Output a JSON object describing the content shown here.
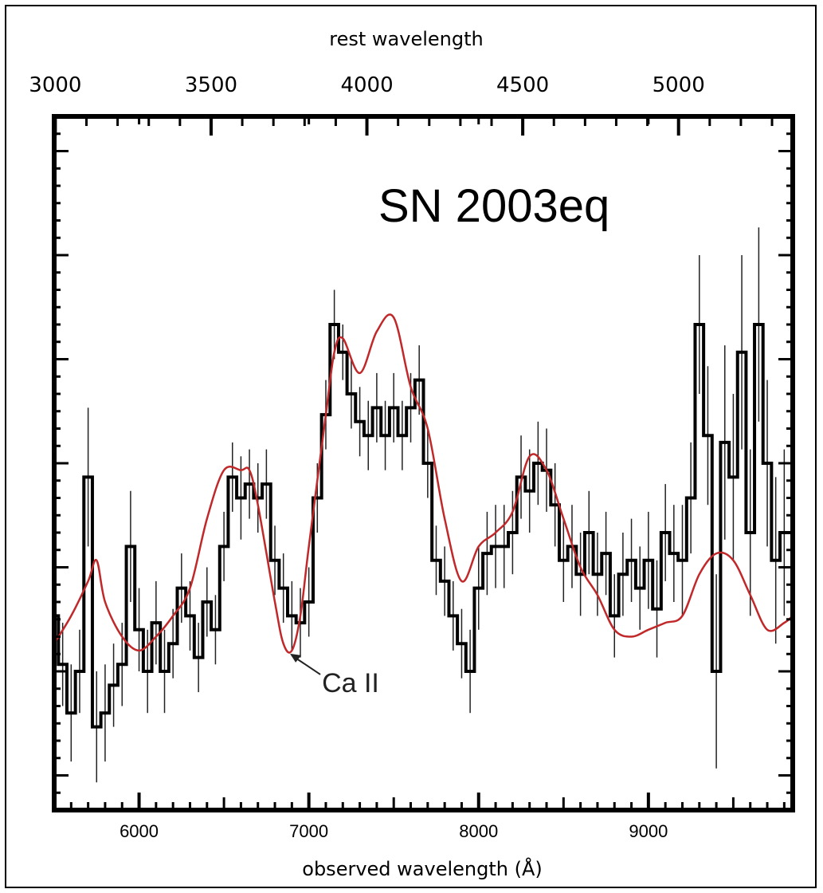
{
  "chart_data": {
    "type": "line",
    "title": "SN 2003eq",
    "xlabel": "observed wavelength (Å)",
    "x2label": "rest wavelength",
    "xlim": [
      5500,
      9850
    ],
    "ylim": [
      0,
      1
    ],
    "x_ticks": [
      6000,
      7000,
      8000,
      9000
    ],
    "x_ticks_labels": [
      "6000",
      "7000",
      "8000",
      "9000"
    ],
    "x2_ticks": [
      3000,
      3500,
      4000,
      4500,
      5000
    ],
    "x2_ticks_labels": [
      "3000",
      "3500",
      "4000",
      "4500",
      "5000"
    ],
    "annotation": {
      "text": "Ca II",
      "x": 6880,
      "y": 0.23
    },
    "colors": {
      "data": "#000000",
      "model": "#c0282a",
      "axes": "#000000"
    },
    "series": [
      {
        "style": "steps",
        "color": "#000000",
        "x": [
          5500,
          5550,
          5600,
          5650,
          5700,
          5750,
          5800,
          5850,
          5900,
          5950,
          6000,
          6050,
          6100,
          6150,
          6200,
          6250,
          6300,
          6350,
          6400,
          6450,
          6500,
          6550,
          6600,
          6650,
          6700,
          6750,
          6800,
          6850,
          6900,
          6950,
          7000,
          7050,
          7100,
          7150,
          7200,
          7250,
          7300,
          7350,
          7400,
          7450,
          7500,
          7550,
          7600,
          7650,
          7700,
          7750,
          7800,
          7850,
          7900,
          7950,
          8000,
          8050,
          8100,
          8150,
          8200,
          8250,
          8300,
          8350,
          8400,
          8450,
          8500,
          8550,
          8600,
          8650,
          8700,
          8750,
          8800,
          8850,
          8900,
          8950,
          9000,
          9050,
          9100,
          9150,
          9200,
          9250,
          9300,
          9350,
          9400,
          9450,
          9500,
          9550,
          9600,
          9650,
          9700,
          9750,
          9800,
          9850
        ],
        "values": [
          0.28,
          0.21,
          0.14,
          0.2,
          0.48,
          0.12,
          0.14,
          0.18,
          0.21,
          0.38,
          0.26,
          0.2,
          0.27,
          0.2,
          0.24,
          0.32,
          0.28,
          0.22,
          0.3,
          0.26,
          0.38,
          0.48,
          0.45,
          0.47,
          0.45,
          0.47,
          0.36,
          0.32,
          0.28,
          0.27,
          0.3,
          0.45,
          0.57,
          0.7,
          0.66,
          0.6,
          0.56,
          0.54,
          0.58,
          0.54,
          0.58,
          0.54,
          0.58,
          0.62,
          0.5,
          0.36,
          0.33,
          0.28,
          0.24,
          0.2,
          0.32,
          0.37,
          0.38,
          0.38,
          0.4,
          0.48,
          0.46,
          0.5,
          0.49,
          0.44,
          0.36,
          0.38,
          0.34,
          0.4,
          0.34,
          0.37,
          0.28,
          0.34,
          0.36,
          0.32,
          0.36,
          0.29,
          0.4,
          0.37,
          0.36,
          0.45,
          0.7,
          0.54,
          0.2,
          0.53,
          0.48,
          0.66,
          0.4,
          0.7,
          0.5,
          0.36,
          0.4,
          0.4
        ],
        "errors": [
          0.05,
          0.06,
          0.07,
          0.06,
          0.1,
          0.08,
          0.07,
          0.06,
          0.06,
          0.08,
          0.06,
          0.06,
          0.06,
          0.06,
          0.05,
          0.05,
          0.05,
          0.05,
          0.05,
          0.05,
          0.05,
          0.05,
          0.06,
          0.05,
          0.05,
          0.05,
          0.05,
          0.05,
          0.05,
          0.05,
          0.05,
          0.05,
          0.05,
          0.05,
          0.04,
          0.05,
          0.05,
          0.05,
          0.05,
          0.05,
          0.05,
          0.05,
          0.05,
          0.05,
          0.05,
          0.05,
          0.05,
          0.05,
          0.05,
          0.06,
          0.06,
          0.06,
          0.06,
          0.06,
          0.06,
          0.06,
          0.06,
          0.06,
          0.06,
          0.06,
          0.06,
          0.06,
          0.06,
          0.06,
          0.06,
          0.06,
          0.06,
          0.06,
          0.06,
          0.06,
          0.07,
          0.07,
          0.07,
          0.07,
          0.08,
          0.08,
          0.1,
          0.1,
          0.14,
          0.14,
          0.12,
          0.14,
          0.12,
          0.14,
          0.12,
          0.12,
          0.12,
          0.1
        ]
      },
      {
        "style": "line",
        "color": "#c0282a",
        "x": [
          5500,
          5600,
          5700,
          5750,
          5800,
          5900,
          6000,
          6100,
          6200,
          6300,
          6400,
          6500,
          6600,
          6650,
          6700,
          6800,
          6850,
          6900,
          6950,
          7000,
          7100,
          7150,
          7200,
          7300,
          7400,
          7500,
          7600,
          7700,
          7800,
          7900,
          8000,
          8100,
          8200,
          8300,
          8400,
          8500,
          8600,
          8700,
          8800,
          8900,
          9000,
          9100,
          9200,
          9300,
          9400,
          9500,
          9600,
          9700,
          9800,
          9850
        ],
        "values": [
          0.24,
          0.28,
          0.33,
          0.36,
          0.3,
          0.25,
          0.23,
          0.25,
          0.28,
          0.32,
          0.42,
          0.49,
          0.49,
          0.49,
          0.44,
          0.3,
          0.24,
          0.23,
          0.28,
          0.38,
          0.57,
          0.66,
          0.68,
          0.63,
          0.69,
          0.71,
          0.61,
          0.55,
          0.42,
          0.33,
          0.38,
          0.4,
          0.43,
          0.51,
          0.49,
          0.42,
          0.35,
          0.31,
          0.26,
          0.25,
          0.26,
          0.27,
          0.28,
          0.34,
          0.37,
          0.36,
          0.31,
          0.26,
          0.27,
          0.28
        ]
      }
    ]
  }
}
